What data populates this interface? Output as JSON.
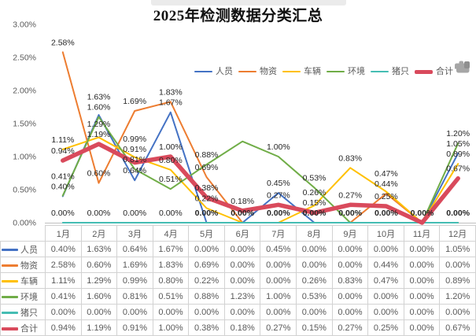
{
  "chart_data": {
    "type": "line",
    "title": "2025年检测数据分类汇总",
    "categories": [
      "1月",
      "2月",
      "3月",
      "4月",
      "5月",
      "6月",
      "7月",
      "8月",
      "9月",
      "10月",
      "11月",
      "12月"
    ],
    "series": [
      {
        "key": "personnel",
        "name": "人员",
        "color": "#4472C4",
        "width": 2,
        "values": [
          0.4,
          1.63,
          0.64,
          1.67,
          0.0,
          0.0,
          0.45,
          0.0,
          0.0,
          0.0,
          0.0,
          1.05
        ]
      },
      {
        "key": "supplies",
        "name": "物资",
        "color": "#ED7D31",
        "width": 2,
        "values": [
          2.58,
          0.6,
          1.69,
          1.83,
          0.69,
          0.0,
          0.0,
          0.0,
          0.0,
          0.44,
          0.0,
          0.0
        ]
      },
      {
        "key": "vehicles",
        "name": "车辆",
        "color": "#FFC000",
        "width": 2,
        "values": [
          1.11,
          1.29,
          0.99,
          0.8,
          0.22,
          0.0,
          0.0,
          0.26,
          0.83,
          0.47,
          0.0,
          0.89
        ]
      },
      {
        "key": "environment",
        "name": "环境",
        "color": "#70AD47",
        "width": 2,
        "values": [
          0.41,
          1.6,
          0.81,
          0.51,
          0.88,
          1.23,
          1.0,
          0.53,
          0.0,
          0.0,
          0.0,
          1.2
        ]
      },
      {
        "key": "pigs",
        "name": "猪只",
        "color": "#45BDB3",
        "width": 2,
        "values": [
          0.0,
          0.0,
          0.0,
          0.0,
          0.0,
          0.0,
          0.0,
          0.0,
          0.0,
          0.0,
          0.0,
          0.0
        ]
      },
      {
        "key": "total",
        "name": "合计",
        "color": "#D94A5C",
        "width": 5.5,
        "values": [
          0.94,
          1.19,
          0.91,
          1.0,
          0.38,
          0.18,
          0.27,
          0.15,
          0.27,
          0.25,
          0.0,
          0.67
        ]
      }
    ],
    "ylim": [
      0,
      3
    ],
    "yticks": [
      "0.00%",
      "0.50%",
      "1.00%",
      "1.50%",
      "2.00%",
      "2.50%",
      "3.00%"
    ],
    "grid": false,
    "legend_position": "top-right",
    "data_labels": true,
    "label_format": "0.00%",
    "hidden_labels": [
      {
        "series": "环境",
        "category": "6月"
      }
    ],
    "colors": {
      "label_text": "#262626",
      "axis_text": "#595959",
      "table_border": "#d2d2d2",
      "axis_line": "#bfbfbf"
    }
  }
}
